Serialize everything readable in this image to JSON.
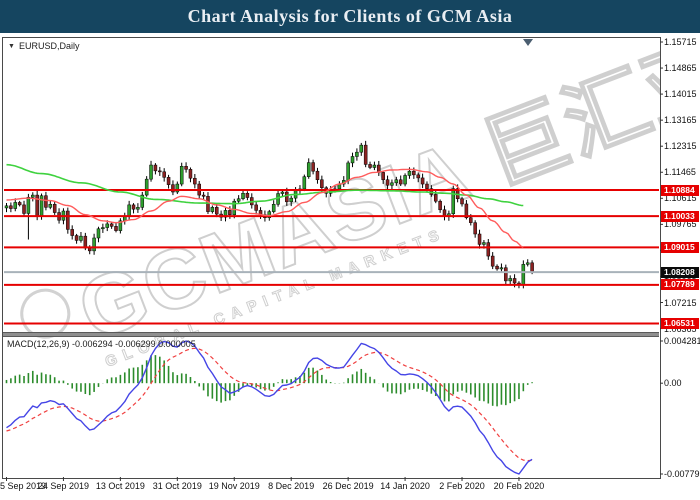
{
  "header": {
    "title": "Chart Analysis for Clients of GCM Asia"
  },
  "main_chart": {
    "symbol_label": "EURUSD,Daily"
  },
  "watermark": {
    "main": "GCMASIA 巨汇亚洲",
    "sub": "GLOBAL CAPITAL MARKETS"
  },
  "chart_data": {
    "type": "candlestick",
    "symbol": "EURUSD",
    "timeframe": "Daily",
    "grid": "off",
    "price_axis_ticks": [
      "1.15715",
      "1.14865",
      "1.14015",
      "1.13165",
      "1.12315",
      "1.11465",
      "1.10615",
      "1.09765",
      "1.08915",
      "1.08065",
      "1.07215",
      "1.06365"
    ],
    "price_axis_top_value": 1.15715,
    "price_axis_tick_step": 0.0085,
    "x_axis_labels": [
      "5 Sep 2019",
      "24 Sep 2019",
      "13 Oct 2019",
      "31 Oct 2019",
      "19 Nov 2019",
      "8 Dec 2019",
      "26 Dec 2019",
      "14 Jan 2020",
      "2 Feb 2020",
      "20 Feb 2020"
    ],
    "x_axis_label_indices": [
      0,
      13,
      26,
      39,
      52,
      65,
      78,
      91,
      104,
      117
    ],
    "horizontal_lines": [
      {
        "price": 1.10884,
        "label": "1.10884",
        "color": "#e60000"
      },
      {
        "price": 1.10033,
        "label": "1.10033",
        "color": "#e60000"
      },
      {
        "price": 1.09015,
        "label": "1.09015",
        "color": "#e60000"
      },
      {
        "price": 1.07789,
        "label": "1.07789",
        "color": "#e60000"
      },
      {
        "price": 1.06531,
        "label": "1.06531",
        "color": "#e60000"
      }
    ],
    "current_price_line": {
      "price": 1.08208,
      "label": "1.08208",
      "line_color": "#a8b2ba",
      "tag_color": "#0a0a0a"
    },
    "candle_up_color": "#2f9e2f",
    "candle_down_color": "#8b2222",
    "first_open": 1.103,
    "closes": [
      1.1037,
      1.1028,
      1.1048,
      1.104,
      1.1012,
      1.1065,
      1.1072,
      1.1004,
      1.107,
      1.1032,
      1.1042,
      1.1015,
      1.099,
      1.102,
      1.096,
      1.094,
      1.0924,
      1.0938,
      1.0899,
      1.089,
      1.0932,
      1.0962,
      1.0966,
      1.0978,
      1.097,
      1.0956,
      1.0988,
      1.1003,
      1.104,
      1.1026,
      1.1032,
      1.1072,
      1.1124,
      1.117,
      1.1151,
      1.1148,
      1.113,
      1.1106,
      1.1082,
      1.1108,
      1.1166,
      1.1156,
      1.1127,
      1.1108,
      1.1072,
      1.1068,
      1.1018,
      1.1032,
      1.101,
      1.1,
      1.1022,
      1.1008,
      1.1052,
      1.106,
      1.1078,
      1.1064,
      1.104,
      1.1022,
      1.1008,
      1.0998,
      1.1018,
      1.1042,
      1.1077,
      1.1082,
      1.105,
      1.1062,
      1.1086,
      1.1092,
      1.1132,
      1.1178,
      1.115,
      1.1122,
      1.1096,
      1.1078,
      1.1088,
      1.1092,
      1.1108,
      1.112,
      1.1177,
      1.1198,
      1.1212,
      1.1235,
      1.1172,
      1.1162,
      1.117,
      1.1146,
      1.1122,
      1.1104,
      1.1112,
      1.1122,
      1.1108,
      1.1136,
      1.115,
      1.1138,
      1.1128,
      1.1108,
      1.1093,
      1.1074,
      1.1052,
      1.1024,
      1.1002,
      1.1011,
      1.1093,
      1.106,
      1.1043,
      1.0998,
      1.0982,
      1.0945,
      1.0911,
      1.0917,
      1.0873,
      1.084,
      1.0831,
      1.0835,
      1.0792,
      1.08,
      1.0785,
      1.0778,
      1.0846,
      1.0851,
      1.0821
    ],
    "wick_overrides": {
      "5": {
        "low": 1.0927
      },
      "19": {
        "low": 1.0879
      },
      "117": {
        "low": 1.0768
      }
    },
    "ma_fast": {
      "color": "#ff5c5c",
      "points": [
        [
          0,
          1.1056
        ],
        [
          5,
          1.1062
        ],
        [
          10,
          1.1054
        ],
        [
          14,
          1.1038
        ],
        [
          18,
          1.1008
        ],
        [
          22,
          1.0988
        ],
        [
          25,
          1.0982
        ],
        [
          29,
          1.0992
        ],
        [
          33,
          1.102
        ],
        [
          37,
          1.1052
        ],
        [
          40,
          1.1068
        ],
        [
          44,
          1.106
        ],
        [
          48,
          1.104
        ],
        [
          52,
          1.1025
        ],
        [
          56,
          1.1012
        ],
        [
          60,
          1.1005
        ],
        [
          64,
          1.1018
        ],
        [
          68,
          1.1048
        ],
        [
          72,
          1.108
        ],
        [
          76,
          1.1108
        ],
        [
          80,
          1.113
        ],
        [
          84,
          1.1146
        ],
        [
          88,
          1.1154
        ],
        [
          92,
          1.1156
        ],
        [
          96,
          1.1148
        ],
        [
          99,
          1.113
        ],
        [
          102,
          1.1108
        ],
        [
          105,
          1.1072
        ],
        [
          108,
          1.103
        ],
        [
          111,
          1.0988
        ],
        [
          114,
          1.095
        ],
        [
          116,
          1.0922
        ],
        [
          118,
          1.0902
        ]
      ]
    },
    "ma_slow": {
      "color": "#3fd23f",
      "points": [
        [
          0,
          1.1171
        ],
        [
          8,
          1.1142
        ],
        [
          17,
          1.1112
        ],
        [
          26,
          1.1082
        ],
        [
          34,
          1.1058
        ],
        [
          44,
          1.1046
        ],
        [
          52,
          1.1044
        ],
        [
          58,
          1.1052
        ],
        [
          66,
          1.1074
        ],
        [
          73,
          1.1082
        ],
        [
          80,
          1.1088
        ],
        [
          88,
          1.1086
        ],
        [
          95,
          1.1082
        ],
        [
          100,
          1.1078
        ],
        [
          105,
          1.1072
        ],
        [
          110,
          1.106
        ],
        [
          114,
          1.105
        ],
        [
          118,
          1.1038
        ]
      ]
    },
    "macd_panel": {
      "name": "MACD(12,26,9)",
      "macd_value": "-0.006294",
      "signal_value": "-0.006299",
      "hist_value": "0.000005",
      "axis_ticks": [
        "0.004281",
        "0.00",
        "-0.007799"
      ],
      "params": {
        "fast": 12,
        "slow": 26,
        "signal": 9
      },
      "macd_color": "#4545e6",
      "signal_color": "#f04040",
      "hist_color": "#2c8c2c"
    }
  }
}
